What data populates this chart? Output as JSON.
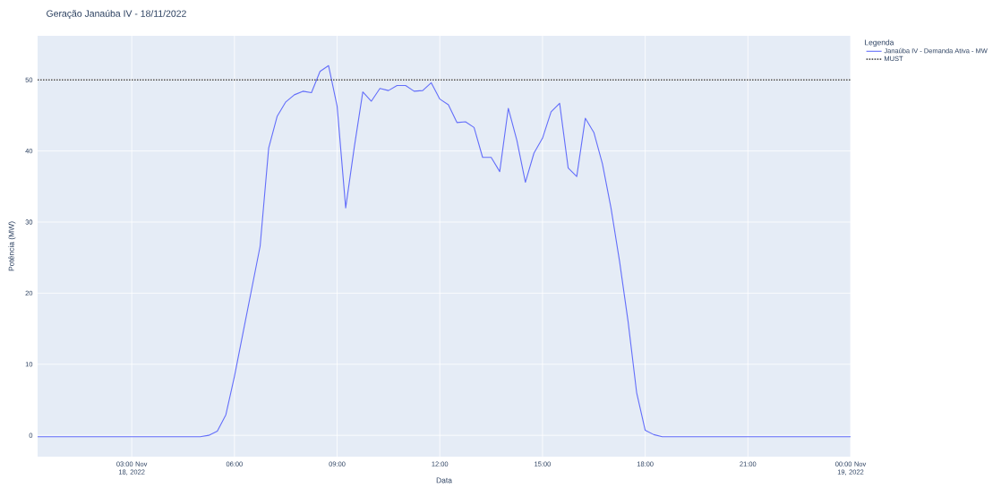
{
  "chart_data": {
    "type": "line",
    "title": "Geração Janaúba IV - 18/11/2022",
    "xlabel": "Data",
    "ylabel": "Potência (MW)",
    "legend_title": "Legenda",
    "x": [
      "2022-11-18T00:15",
      "2022-11-18T00:30",
      "2022-11-18T00:45",
      "2022-11-18T01:00",
      "2022-11-18T01:15",
      "2022-11-18T01:30",
      "2022-11-18T01:45",
      "2022-11-18T02:00",
      "2022-11-18T02:15",
      "2022-11-18T02:30",
      "2022-11-18T02:45",
      "2022-11-18T03:00",
      "2022-11-18T03:15",
      "2022-11-18T03:30",
      "2022-11-18T03:45",
      "2022-11-18T04:00",
      "2022-11-18T04:15",
      "2022-11-18T04:30",
      "2022-11-18T04:45",
      "2022-11-18T05:00",
      "2022-11-18T05:15",
      "2022-11-18T05:30",
      "2022-11-18T05:45",
      "2022-11-18T06:00",
      "2022-11-18T06:15",
      "2022-11-18T06:30",
      "2022-11-18T06:45",
      "2022-11-18T07:00",
      "2022-11-18T07:15",
      "2022-11-18T07:30",
      "2022-11-18T07:45",
      "2022-11-18T08:00",
      "2022-11-18T08:15",
      "2022-11-18T08:30",
      "2022-11-18T08:45",
      "2022-11-18T09:00",
      "2022-11-18T09:15",
      "2022-11-18T09:30",
      "2022-11-18T09:45",
      "2022-11-18T10:00",
      "2022-11-18T10:15",
      "2022-11-18T10:30",
      "2022-11-18T10:45",
      "2022-11-18T11:00",
      "2022-11-18T11:15",
      "2022-11-18T11:30",
      "2022-11-18T11:45",
      "2022-11-18T12:00",
      "2022-11-18T12:15",
      "2022-11-18T12:30",
      "2022-11-18T12:45",
      "2022-11-18T13:00",
      "2022-11-18T13:15",
      "2022-11-18T13:30",
      "2022-11-18T13:45",
      "2022-11-18T14:00",
      "2022-11-18T14:15",
      "2022-11-18T14:30",
      "2022-11-18T14:45",
      "2022-11-18T15:00",
      "2022-11-18T15:15",
      "2022-11-18T15:30",
      "2022-11-18T15:45",
      "2022-11-18T16:00",
      "2022-11-18T16:15",
      "2022-11-18T16:30",
      "2022-11-18T16:45",
      "2022-11-18T17:00",
      "2022-11-18T17:15",
      "2022-11-18T17:30",
      "2022-11-18T17:45",
      "2022-11-18T18:00",
      "2022-11-18T18:15",
      "2022-11-18T18:30",
      "2022-11-18T18:45",
      "2022-11-18T19:00",
      "2022-11-18T19:15",
      "2022-11-18T19:30",
      "2022-11-18T19:45",
      "2022-11-18T20:00",
      "2022-11-18T20:15",
      "2022-11-18T20:30",
      "2022-11-18T20:45",
      "2022-11-18T21:00",
      "2022-11-18T21:15",
      "2022-11-18T21:30",
      "2022-11-18T21:45",
      "2022-11-18T22:00",
      "2022-11-18T22:15",
      "2022-11-18T22:30",
      "2022-11-18T22:45",
      "2022-11-18T23:00",
      "2022-11-18T23:15",
      "2022-11-18T23:30",
      "2022-11-18T23:45",
      "2022-11-19T00:00"
    ],
    "series": [
      {
        "name": "Janaúba IV - Demanda Ativa - MW",
        "color": "#636efa",
        "values": [
          -0.2,
          -0.2,
          -0.2,
          -0.2,
          -0.2,
          -0.2,
          -0.2,
          -0.2,
          -0.2,
          -0.2,
          -0.2,
          -0.2,
          -0.2,
          -0.2,
          -0.2,
          -0.2,
          -0.2,
          -0.2,
          -0.2,
          -0.2,
          0,
          0.6,
          2.9,
          8.3,
          14.4,
          20.5,
          26.6,
          40.4,
          44.9,
          46.9,
          47.9,
          48.4,
          48.2,
          51.2,
          52.0,
          46.3,
          32.0,
          40.5,
          48.3,
          47.0,
          48.8,
          48.5,
          49.2,
          49.2,
          48.4,
          48.5,
          49.6,
          47.3,
          46.5,
          44.0,
          44.1,
          43.3,
          39.1,
          39.1,
          37.1,
          46.0,
          41.5,
          35.6,
          39.7,
          41.8,
          45.5,
          46.7,
          37.6,
          36.4,
          44.6,
          42.6,
          38.2,
          32.0,
          24.5,
          16.0,
          6.0,
          0.7,
          0.1,
          -0.2,
          -0.2,
          -0.2,
          -0.2,
          -0.2,
          -0.2,
          -0.2,
          -0.2,
          -0.2,
          -0.2,
          -0.2,
          -0.2,
          -0.2,
          -0.2,
          -0.2,
          -0.2,
          -0.2,
          -0.2,
          -0.2,
          -0.2,
          -0.2,
          -0.2,
          -0.2
        ]
      },
      {
        "name": "MUST",
        "color": "#555555",
        "line_style": "dotted",
        "x": [
          "2022-11-18T00:15",
          "2022-11-19T00:00"
        ],
        "values": [
          50,
          50
        ]
      }
    ],
    "xlim": [
      "2022-11-18T00:15",
      "2022-11-19T00:00"
    ],
    "xticks": [
      {
        "value": "2022-11-18T03:00",
        "label": "03:00 Nov 18, 2022"
      },
      {
        "value": "2022-11-18T06:00",
        "label": "06:00"
      },
      {
        "value": "2022-11-18T09:00",
        "label": "09:00"
      },
      {
        "value": "2022-11-18T12:00",
        "label": "12:00"
      },
      {
        "value": "2022-11-18T15:00",
        "label": "15:00"
      },
      {
        "value": "2022-11-18T18:00",
        "label": "18:00"
      },
      {
        "value": "2022-11-18T21:00",
        "label": "21:00"
      },
      {
        "value": "2022-11-19T00:00",
        "label": "00:00 Nov 19, 2022"
      }
    ],
    "ylim": [
      -3,
      56.2
    ],
    "yticks": [
      0,
      10,
      20,
      30,
      40,
      50
    ],
    "grid": true,
    "legend": "top right"
  }
}
